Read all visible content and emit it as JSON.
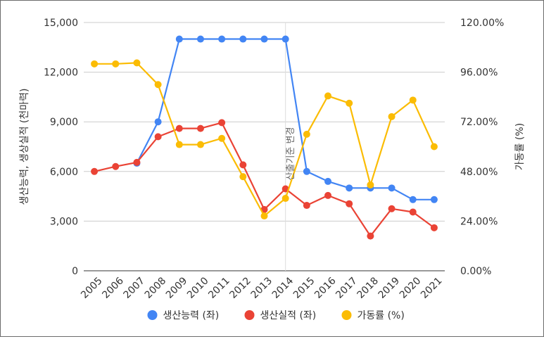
{
  "chart_data": {
    "type": "line",
    "categories": [
      "2005",
      "2006",
      "2007",
      "2008",
      "2009",
      "2010",
      "2011",
      "2012",
      "2013",
      "2014",
      "2015",
      "2016",
      "2017",
      "2018",
      "2019",
      "2020",
      "2021"
    ],
    "series": [
      {
        "name": "생산능력 (좌)",
        "axis": "left",
        "color": "#4285f4",
        "values": [
          null,
          null,
          6500,
          9000,
          14000,
          14000,
          14000,
          14000,
          14000,
          14000,
          6000,
          5400,
          5000,
          5000,
          5000,
          4300,
          4300
        ]
      },
      {
        "name": "생산실적 (좌)",
        "axis": "left",
        "color": "#ea4335",
        "values": [
          6000,
          6300,
          6550,
          8100,
          8600,
          8600,
          8950,
          6400,
          3700,
          4950,
          3950,
          4550,
          4050,
          2100,
          3750,
          3550,
          2600
        ]
      },
      {
        "name": "가동률 (%)",
        "axis": "right",
        "color": "#fbbc04",
        "values": [
          100,
          100,
          100.5,
          90,
          61,
          61,
          64,
          45.5,
          26.5,
          35,
          66,
          84.5,
          81,
          41.5,
          74.5,
          82.5,
          60
        ]
      }
    ],
    "ylabel": "생산능력, 생상실적 (천마력)",
    "y2label": "가동률 (%)",
    "ylim": [
      0,
      15000
    ],
    "y2lim": [
      0,
      120
    ],
    "yticks": [
      "0",
      "3,000",
      "6,000",
      "9,000",
      "12,000",
      "15,000"
    ],
    "y2ticks": [
      "0.00%",
      "24.00%",
      "48.00%",
      "72.00%",
      "96.00%",
      "120.00%"
    ],
    "annotation": {
      "text": "산출기준 변경",
      "at": "2014"
    },
    "grid": true,
    "legend": "bottom"
  }
}
